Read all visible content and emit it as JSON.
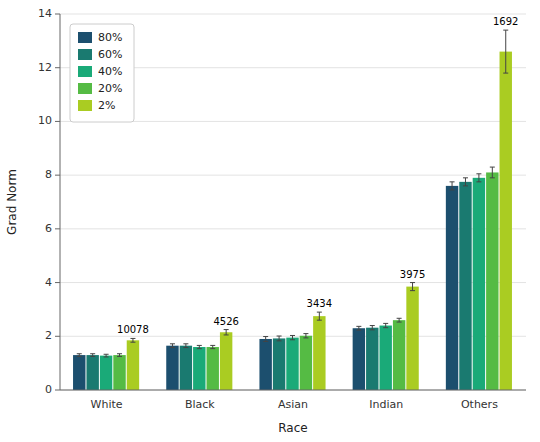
{
  "chart_data": {
    "type": "bar",
    "categories": [
      "White",
      "Black",
      "Asian",
      "Indian",
      "Others"
    ],
    "series": [
      {
        "name": "80%",
        "color": "#1c4f6e",
        "values": [
          1.3,
          1.65,
          1.9,
          2.3,
          7.6
        ],
        "errors": [
          0.05,
          0.07,
          0.09,
          0.07,
          0.15
        ]
      },
      {
        "name": "60%",
        "color": "#1a7a70",
        "values": [
          1.3,
          1.65,
          1.92,
          2.32,
          7.75
        ],
        "errors": [
          0.05,
          0.07,
          0.09,
          0.08,
          0.15
        ]
      },
      {
        "name": "40%",
        "color": "#1aaa78",
        "values": [
          1.28,
          1.6,
          1.95,
          2.4,
          7.9
        ],
        "errors": [
          0.05,
          0.06,
          0.08,
          0.08,
          0.15
        ]
      },
      {
        "name": "20%",
        "color": "#55bb44",
        "values": [
          1.3,
          1.6,
          2.02,
          2.6,
          8.1
        ],
        "errors": [
          0.05,
          0.06,
          0.08,
          0.07,
          0.2
        ]
      },
      {
        "name": "2%",
        "color": "#aacc22",
        "values": [
          1.85,
          2.15,
          2.75,
          3.85,
          12.6
        ],
        "errors": [
          0.07,
          0.1,
          0.15,
          0.15,
          0.8
        ]
      }
    ],
    "annotations": [
      {
        "text": "10078",
        "category": "White"
      },
      {
        "text": "4526",
        "category": "Black"
      },
      {
        "text": "3434",
        "category": "Asian"
      },
      {
        "text": "3975",
        "category": "Indian"
      },
      {
        "text": "1692",
        "category": "Others"
      }
    ],
    "xlabel": "Race",
    "ylabel": "Grad Norm",
    "ylim": [
      0,
      14
    ],
    "yticks": [
      0,
      2,
      4,
      6,
      8,
      10,
      12,
      14
    ],
    "grid": true,
    "legend": "upper left"
  }
}
